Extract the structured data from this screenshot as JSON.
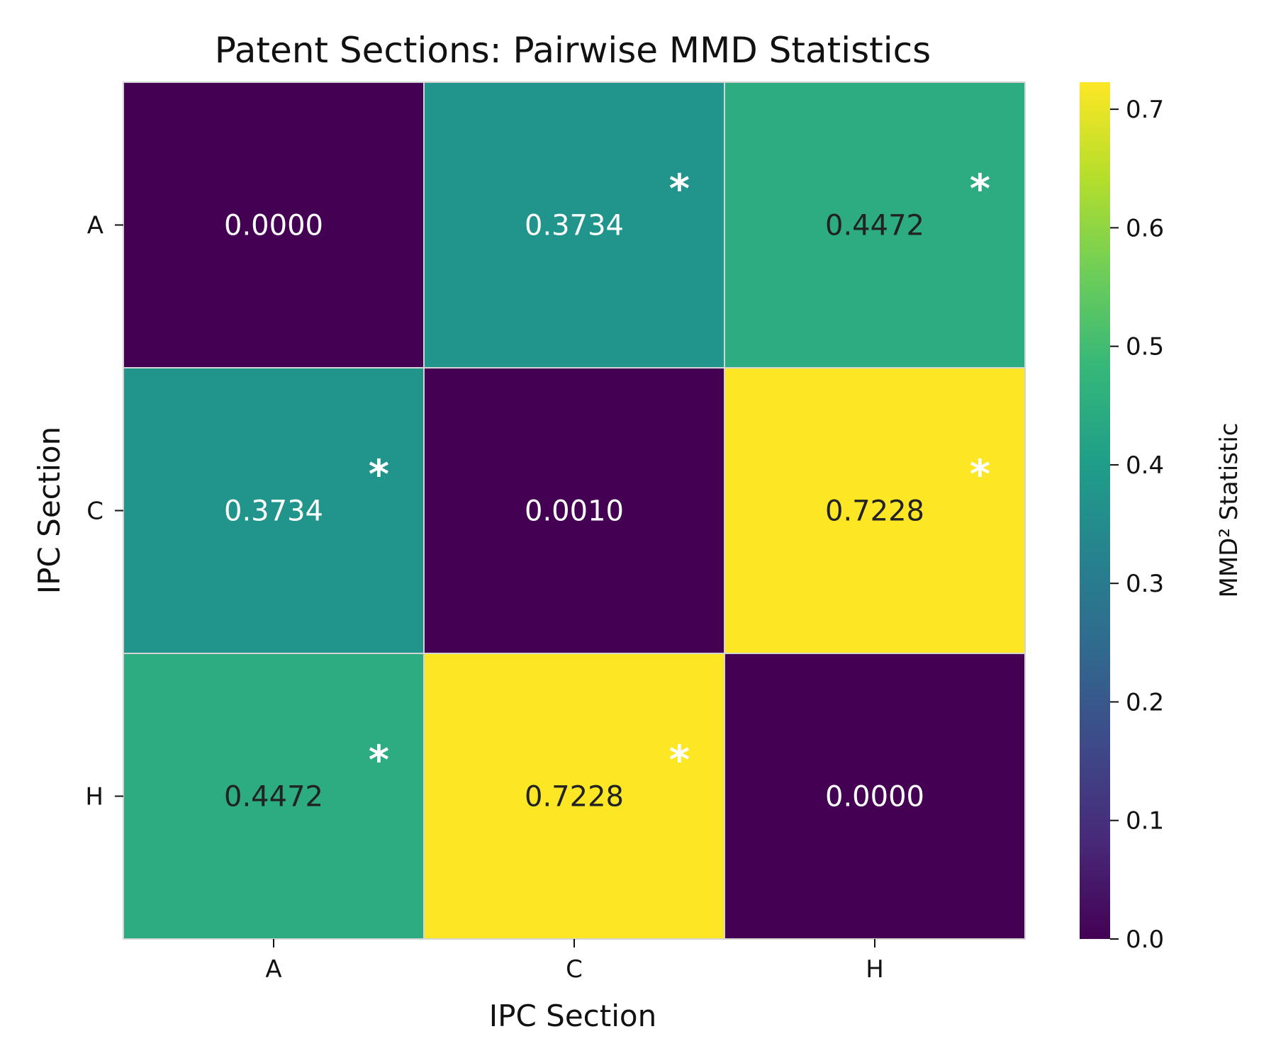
{
  "chart_data": {
    "type": "heatmap",
    "title": "Patent Sections: Pairwise MMD Statistics",
    "xlabel": "IPC Section",
    "ylabel": "IPC Section",
    "x_categories": [
      "A",
      "C",
      "H"
    ],
    "y_categories": [
      "A",
      "C",
      "H"
    ],
    "values": [
      [
        0.0,
        0.3734,
        0.4472
      ],
      [
        0.3734,
        0.001,
        0.7228
      ],
      [
        0.4472,
        0.7228,
        0.0
      ]
    ],
    "cell_labels": [
      [
        "0.0000",
        "0.3734",
        "0.4472"
      ],
      [
        "0.3734",
        "0.0010",
        "0.7228"
      ],
      [
        "0.4472",
        "0.7228",
        "0.0000"
      ]
    ],
    "significant": [
      [
        false,
        true,
        true
      ],
      [
        true,
        false,
        true
      ],
      [
        true,
        true,
        false
      ]
    ],
    "significance_marker": "*",
    "colormap": "viridis",
    "vmin": 0.0,
    "vmax": 0.7228,
    "colorbar": {
      "label": "MMD² Statistic",
      "ticks": [
        0.0,
        0.1,
        0.2,
        0.3,
        0.4,
        0.5,
        0.6,
        0.7
      ],
      "tick_labels": [
        "0.0",
        "0.1",
        "0.2",
        "0.3",
        "0.4",
        "0.5",
        "0.6",
        "0.7"
      ]
    },
    "grid": false,
    "legend": "colorbar-right",
    "colors": {
      "cell_border": "#d4d4d4",
      "text_light": "#ffffff",
      "text_dark": "#222222"
    }
  }
}
